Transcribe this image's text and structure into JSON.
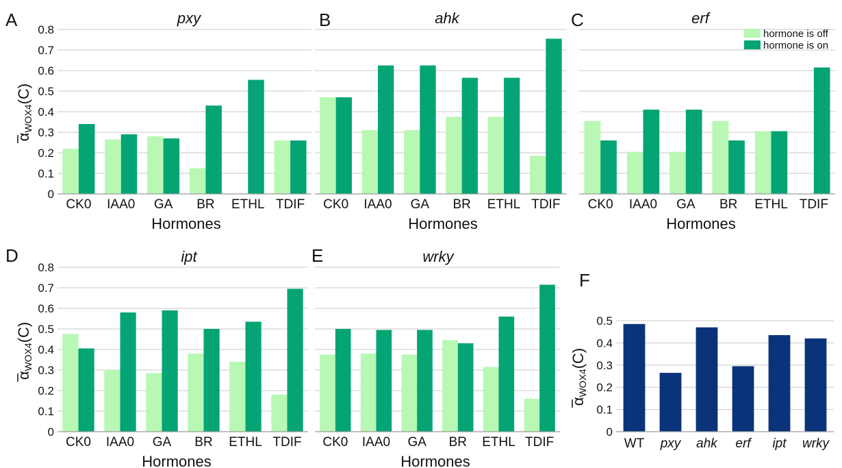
{
  "colors": {
    "off": "#b8f7b4",
    "on": "#05a474",
    "wt": "#0b3379",
    "grid": "#c8c8c8",
    "axis": "#9a9a9a"
  },
  "y_label": {
    "alpha": "α",
    "sub": "WOX4",
    "paren": "(C)"
  },
  "legend": {
    "off": "hormone is off",
    "on": "hormone is on"
  },
  "chart_data": [
    {
      "id": "pxy",
      "type": "bar",
      "panel_label": "A",
      "title": "pxy",
      "xlabel": "Hormones",
      "categories": [
        "CK0",
        "IAA0",
        "GA",
        "BR",
        "ETHL",
        "TDIF"
      ],
      "ylim": [
        0,
        0.8
      ],
      "yticks": [
        "0",
        "0.1",
        "0.2",
        "0.3",
        "0.4",
        "0.5",
        "0.6",
        "0.7",
        "0.8"
      ],
      "series": [
        {
          "key": "off",
          "name": "hormone is off",
          "values": [
            0.22,
            0.265,
            0.28,
            0.125,
            0,
            0.26
          ]
        },
        {
          "key": "on",
          "name": "hormone is on",
          "values": [
            0.34,
            0.29,
            0.27,
            0.43,
            0.555,
            0.26
          ]
        }
      ]
    },
    {
      "id": "ahk",
      "type": "bar",
      "panel_label": "B",
      "title": "ahk",
      "xlabel": "Hormones",
      "categories": [
        "CK0",
        "IAA0",
        "GA",
        "BR",
        "ETHL",
        "TDIF"
      ],
      "ylim": [
        0,
        0.8
      ],
      "yticks": [],
      "series": [
        {
          "key": "off",
          "name": "hormone is off",
          "values": [
            0.47,
            0.31,
            0.31,
            0.375,
            0.375,
            0.185
          ]
        },
        {
          "key": "on",
          "name": "hormone is on",
          "values": [
            0.47,
            0.625,
            0.625,
            0.565,
            0.565,
            0.755
          ]
        }
      ]
    },
    {
      "id": "erf",
      "type": "bar",
      "panel_label": "C",
      "title": "erf",
      "xlabel": "Hormones",
      "categories": [
        "CK0",
        "IAA0",
        "GA",
        "BR",
        "ETHL",
        "TDIF"
      ],
      "ylim": [
        0,
        0.8
      ],
      "yticks": [],
      "series": [
        {
          "key": "off",
          "name": "hormone is off",
          "values": [
            0.355,
            0.205,
            0.205,
            0.355,
            0.305,
            0
          ]
        },
        {
          "key": "on",
          "name": "hormone is on",
          "values": [
            0.26,
            0.41,
            0.41,
            0.26,
            0.305,
            0.615
          ]
        }
      ]
    },
    {
      "id": "ipt",
      "type": "bar",
      "panel_label": "D",
      "title": "ipt",
      "xlabel": "Hormones",
      "categories": [
        "CK0",
        "IAA0",
        "GA",
        "BR",
        "ETHL",
        "TDIF"
      ],
      "ylim": [
        0,
        0.8
      ],
      "yticks": [
        "0",
        "0.1",
        "0.2",
        "0.3",
        "0.4",
        "0.5",
        "0.6",
        "0.7",
        "0.8"
      ],
      "series": [
        {
          "key": "off",
          "name": "hormone is off",
          "values": [
            0.475,
            0.3,
            0.285,
            0.38,
            0.34,
            0.18
          ]
        },
        {
          "key": "on",
          "name": "hormone is on",
          "values": [
            0.405,
            0.58,
            0.59,
            0.5,
            0.535,
            0.695
          ]
        }
      ]
    },
    {
      "id": "wrky",
      "type": "bar",
      "panel_label": "E",
      "title": "wrky",
      "xlabel": "Hormones",
      "categories": [
        "CK0",
        "IAA0",
        "GA",
        "BR",
        "ETHL",
        "TDIF"
      ],
      "ylim": [
        0,
        0.8
      ],
      "yticks": [],
      "series": [
        {
          "key": "off",
          "name": "hormone is off",
          "values": [
            0.375,
            0.38,
            0.375,
            0.445,
            0.315,
            0.16
          ]
        },
        {
          "key": "on",
          "name": "hormone is on",
          "values": [
            0.5,
            0.495,
            0.495,
            0.43,
            0.56,
            0.715
          ]
        }
      ]
    },
    {
      "id": "mutants",
      "type": "bar",
      "panel_label": "F",
      "title": "",
      "xlabel": "",
      "categories": [
        "WT",
        "pxy",
        "ahk",
        "erf",
        "ipt",
        "wrky"
      ],
      "ylim": [
        0,
        0.5
      ],
      "yticks": [
        "0",
        "0.1",
        "0.2",
        "0.3",
        "0.4",
        "0.5"
      ],
      "series": [
        {
          "key": "wt",
          "values": [
            0.485,
            0.265,
            0.47,
            0.295,
            0.435,
            0.42
          ]
        }
      ]
    }
  ]
}
